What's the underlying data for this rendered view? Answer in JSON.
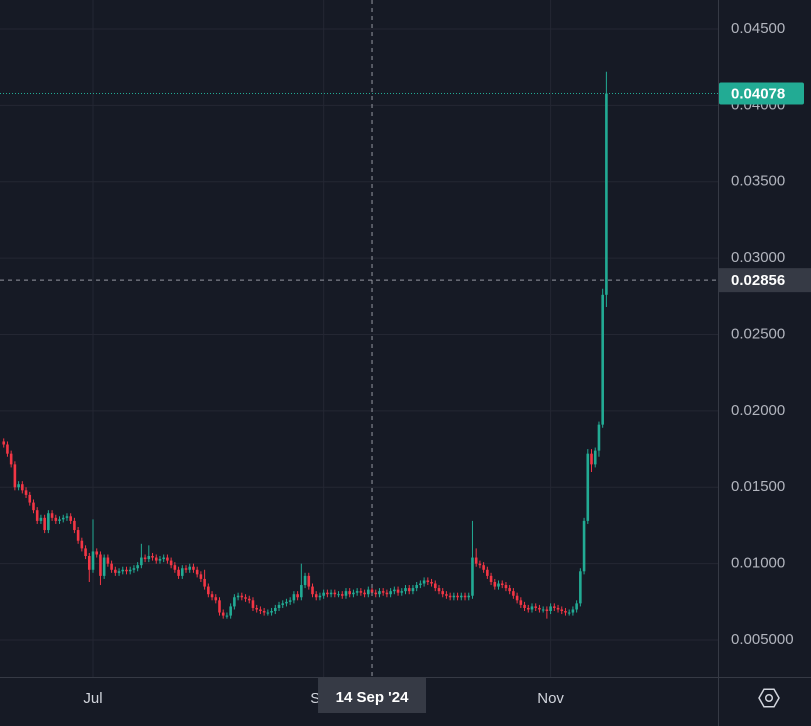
{
  "chart_data": {
    "type": "candlestick",
    "x": [
      "2024-06-07",
      "2024-06-08",
      "2024-06-09",
      "2024-06-10",
      "2024-06-11",
      "2024-06-12",
      "2024-06-13",
      "2024-06-14",
      "2024-06-15",
      "2024-06-16",
      "2024-06-17",
      "2024-06-18",
      "2024-06-19",
      "2024-06-20",
      "2024-06-21",
      "2024-06-22",
      "2024-06-23",
      "2024-06-24",
      "2024-06-25",
      "2024-06-26",
      "2024-06-27",
      "2024-06-28",
      "2024-06-29",
      "2024-06-30",
      "2024-07-01",
      "2024-07-02",
      "2024-07-03",
      "2024-07-04",
      "2024-07-05",
      "2024-07-06",
      "2024-07-07",
      "2024-07-08",
      "2024-07-09",
      "2024-07-10",
      "2024-07-11",
      "2024-07-12",
      "2024-07-13",
      "2024-07-14",
      "2024-07-15",
      "2024-07-16",
      "2024-07-17",
      "2024-07-18",
      "2024-07-19",
      "2024-07-20",
      "2024-07-21",
      "2024-07-22",
      "2024-07-23",
      "2024-07-24",
      "2024-07-25",
      "2024-07-26",
      "2024-07-27",
      "2024-07-28",
      "2024-07-29",
      "2024-07-30",
      "2024-07-31",
      "2024-08-01",
      "2024-08-02",
      "2024-08-03",
      "2024-08-04",
      "2024-08-05",
      "2024-08-06",
      "2024-08-07",
      "2024-08-08",
      "2024-08-09",
      "2024-08-10",
      "2024-08-11",
      "2024-08-12",
      "2024-08-13",
      "2024-08-14",
      "2024-08-15",
      "2024-08-16",
      "2024-08-17",
      "2024-08-18",
      "2024-08-19",
      "2024-08-20",
      "2024-08-21",
      "2024-08-22",
      "2024-08-23",
      "2024-08-24",
      "2024-08-25",
      "2024-08-26",
      "2024-08-27",
      "2024-08-28",
      "2024-08-29",
      "2024-08-30",
      "2024-08-31",
      "2024-09-01",
      "2024-09-02",
      "2024-09-03",
      "2024-09-04",
      "2024-09-05",
      "2024-09-06",
      "2024-09-07",
      "2024-09-08",
      "2024-09-09",
      "2024-09-10",
      "2024-09-11",
      "2024-09-12",
      "2024-09-13",
      "2024-09-14",
      "2024-09-15",
      "2024-09-16",
      "2024-09-17",
      "2024-09-18",
      "2024-09-19",
      "2024-09-20",
      "2024-09-21",
      "2024-09-22",
      "2024-09-23",
      "2024-09-24",
      "2024-09-25",
      "2024-09-26",
      "2024-09-27",
      "2024-09-28",
      "2024-09-29",
      "2024-09-30",
      "2024-10-01",
      "2024-10-02",
      "2024-10-03",
      "2024-10-04",
      "2024-10-05",
      "2024-10-06",
      "2024-10-07",
      "2024-10-08",
      "2024-10-09",
      "2024-10-10",
      "2024-10-11",
      "2024-10-12",
      "2024-10-13",
      "2024-10-14",
      "2024-10-15",
      "2024-10-16",
      "2024-10-17",
      "2024-10-18",
      "2024-10-19",
      "2024-10-20",
      "2024-10-21",
      "2024-10-22",
      "2024-10-23",
      "2024-10-24",
      "2024-10-25",
      "2024-10-26",
      "2024-10-27",
      "2024-10-28",
      "2024-10-29",
      "2024-10-30",
      "2024-10-31",
      "2024-11-01",
      "2024-11-02",
      "2024-11-03",
      "2024-11-04",
      "2024-11-05",
      "2024-11-06",
      "2024-11-07",
      "2024-11-08",
      "2024-11-09",
      "2024-11-10",
      "2024-11-11",
      "2024-11-12",
      "2024-11-13",
      "2024-11-14",
      "2024-11-15",
      "2024-11-16"
    ],
    "series": [
      {
        "up_color": "#22ab94",
        "down_color": "#f23645",
        "open": [
          0.018,
          0.0178,
          0.0172,
          0.0165,
          0.015,
          0.0152,
          0.0148,
          0.0145,
          0.014,
          0.0135,
          0.0128,
          0.013,
          0.0122,
          0.0133,
          0.013,
          0.0128,
          0.0129,
          0.013,
          0.0131,
          0.0128,
          0.0122,
          0.0115,
          0.011,
          0.0105,
          0.0096,
          0.0108,
          0.0106,
          0.0092,
          0.0104,
          0.01,
          0.0096,
          0.0094,
          0.0095,
          0.0096,
          0.0095,
          0.0096,
          0.0097,
          0.0099,
          0.0104,
          0.0103,
          0.0105,
          0.0104,
          0.0102,
          0.0103,
          0.0104,
          0.0102,
          0.0099,
          0.0096,
          0.0092,
          0.0097,
          0.0096,
          0.0098,
          0.0096,
          0.0093,
          0.009,
          0.0085,
          0.008,
          0.0078,
          0.0076,
          0.0068,
          0.0066,
          0.0066,
          0.0072,
          0.0078,
          0.0079,
          0.0078,
          0.0077,
          0.0076,
          0.0071,
          0.007,
          0.0069,
          0.0068,
          0.0068,
          0.0069,
          0.0071,
          0.0073,
          0.0074,
          0.0075,
          0.0076,
          0.008,
          0.0078,
          0.0086,
          0.0092,
          0.0085,
          0.008,
          0.0078,
          0.0079,
          0.0081,
          0.008,
          0.0081,
          0.008,
          0.008,
          0.0079,
          0.0082,
          0.008,
          0.0081,
          0.0082,
          0.0081,
          0.008,
          0.0083,
          0.0081,
          0.008,
          0.0082,
          0.0081,
          0.008,
          0.0082,
          0.0083,
          0.0081,
          0.0082,
          0.0084,
          0.0082,
          0.0084,
          0.0086,
          0.0087,
          0.0089,
          0.0088,
          0.0087,
          0.0084,
          0.0082,
          0.008,
          0.0079,
          0.0078,
          0.0079,
          0.0078,
          0.0079,
          0.0078,
          0.0079,
          0.0104,
          0.01,
          0.0099,
          0.0096,
          0.0092,
          0.0088,
          0.0085,
          0.0087,
          0.0086,
          0.0084,
          0.0082,
          0.0079,
          0.0076,
          0.0073,
          0.0071,
          0.007,
          0.0072,
          0.0071,
          0.007,
          0.007,
          0.0069,
          0.0072,
          0.0071,
          0.007,
          0.0069,
          0.0068,
          0.0068,
          0.007,
          0.0074,
          0.0095,
          0.0128,
          0.0172,
          0.0165,
          0.0174,
          0.0191,
          0.0276
        ],
        "high": [
          0.0182,
          0.018,
          0.0174,
          0.0167,
          0.0154,
          0.0154,
          0.015,
          0.0147,
          0.0142,
          0.0137,
          0.0132,
          0.0132,
          0.0135,
          0.0135,
          0.0132,
          0.0131,
          0.0132,
          0.0133,
          0.0133,
          0.013,
          0.0124,
          0.0117,
          0.0112,
          0.0107,
          0.0129,
          0.011,
          0.0108,
          0.0106,
          0.0106,
          0.0102,
          0.0098,
          0.0097,
          0.0098,
          0.0098,
          0.0098,
          0.0099,
          0.0101,
          0.0113,
          0.0106,
          0.0112,
          0.0107,
          0.0106,
          0.0105,
          0.0106,
          0.0106,
          0.0104,
          0.0101,
          0.0098,
          0.0099,
          0.0099,
          0.01,
          0.01,
          0.0098,
          0.0095,
          0.0096,
          0.0087,
          0.0082,
          0.008,
          0.0078,
          0.007,
          0.0068,
          0.0074,
          0.008,
          0.0081,
          0.0081,
          0.008,
          0.0079,
          0.0078,
          0.0073,
          0.0072,
          0.0071,
          0.007,
          0.0071,
          0.0073,
          0.0075,
          0.0076,
          0.0077,
          0.0078,
          0.0082,
          0.0082,
          0.01,
          0.0094,
          0.0094,
          0.0087,
          0.0082,
          0.0081,
          0.0083,
          0.0083,
          0.0083,
          0.0083,
          0.0082,
          0.0082,
          0.0084,
          0.0084,
          0.0083,
          0.0084,
          0.0084,
          0.0083,
          0.0085,
          0.0085,
          0.0083,
          0.0084,
          0.0084,
          0.0083,
          0.0084,
          0.0085,
          0.0085,
          0.0084,
          0.0086,
          0.0086,
          0.0086,
          0.0088,
          0.0089,
          0.0091,
          0.0091,
          0.009,
          0.0089,
          0.0086,
          0.0084,
          0.0082,
          0.0081,
          0.0081,
          0.0081,
          0.0081,
          0.0081,
          0.0081,
          0.0128,
          0.011,
          0.0102,
          0.0101,
          0.0098,
          0.0094,
          0.009,
          0.0089,
          0.0089,
          0.0088,
          0.0086,
          0.0084,
          0.0081,
          0.0078,
          0.0075,
          0.0073,
          0.0074,
          0.0074,
          0.0073,
          0.0072,
          0.0072,
          0.0074,
          0.0074,
          0.0073,
          0.0072,
          0.0071,
          0.007,
          0.0072,
          0.0076,
          0.0097,
          0.013,
          0.0175,
          0.0175,
          0.0176,
          0.0193,
          0.028,
          0.0422
        ],
        "low": [
          0.0176,
          0.017,
          0.0163,
          0.0148,
          0.0148,
          0.0146,
          0.0143,
          0.0138,
          0.0133,
          0.0126,
          0.0126,
          0.012,
          0.012,
          0.0128,
          0.0126,
          0.0126,
          0.0127,
          0.0128,
          0.0126,
          0.012,
          0.0113,
          0.0108,
          0.0103,
          0.0088,
          0.0094,
          0.0104,
          0.0086,
          0.009,
          0.0098,
          0.0094,
          0.0092,
          0.0092,
          0.0093,
          0.0093,
          0.0093,
          0.0094,
          0.0095,
          0.0097,
          0.0101,
          0.0101,
          0.0102,
          0.01,
          0.01,
          0.0101,
          0.01,
          0.0097,
          0.0094,
          0.009,
          0.009,
          0.0094,
          0.0094,
          0.0094,
          0.0091,
          0.0088,
          0.0083,
          0.0078,
          0.0076,
          0.0074,
          0.0066,
          0.0064,
          0.0064,
          0.0064,
          0.007,
          0.0076,
          0.0076,
          0.0075,
          0.0074,
          0.0069,
          0.0068,
          0.0067,
          0.0066,
          0.0066,
          0.0066,
          0.0067,
          0.0069,
          0.0071,
          0.0072,
          0.0073,
          0.0074,
          0.0076,
          0.0076,
          0.0084,
          0.0083,
          0.0078,
          0.0076,
          0.0076,
          0.0077,
          0.0078,
          0.0078,
          0.0078,
          0.0078,
          0.0077,
          0.0077,
          0.0078,
          0.0078,
          0.0079,
          0.0079,
          0.0078,
          0.0078,
          0.0079,
          0.0078,
          0.0078,
          0.0079,
          0.0078,
          0.0078,
          0.008,
          0.0079,
          0.0079,
          0.008,
          0.008,
          0.008,
          0.0082,
          0.0084,
          0.0085,
          0.0086,
          0.0085,
          0.0082,
          0.008,
          0.0078,
          0.0077,
          0.0076,
          0.0076,
          0.0076,
          0.0076,
          0.0076,
          0.0076,
          0.0077,
          0.0098,
          0.0097,
          0.0094,
          0.009,
          0.0086,
          0.0083,
          0.0083,
          0.0084,
          0.0082,
          0.008,
          0.0077,
          0.0074,
          0.0071,
          0.0069,
          0.0068,
          0.0068,
          0.0069,
          0.0068,
          0.0068,
          0.0064,
          0.0067,
          0.0069,
          0.0068,
          0.0067,
          0.0066,
          0.0066,
          0.0066,
          0.0068,
          0.0072,
          0.0093,
          0.0126,
          0.016,
          0.0163,
          0.017,
          0.0189,
          0.0268
        ],
        "close": [
          0.0178,
          0.0172,
          0.0165,
          0.015,
          0.0152,
          0.0148,
          0.0145,
          0.014,
          0.0135,
          0.0128,
          0.013,
          0.0122,
          0.0133,
          0.013,
          0.0128,
          0.0129,
          0.013,
          0.0131,
          0.0128,
          0.0122,
          0.0115,
          0.011,
          0.0105,
          0.0096,
          0.0108,
          0.0106,
          0.0092,
          0.0104,
          0.01,
          0.0096,
          0.0094,
          0.0095,
          0.0096,
          0.0095,
          0.0096,
          0.0097,
          0.0099,
          0.0104,
          0.0103,
          0.0105,
          0.0104,
          0.0102,
          0.0103,
          0.0104,
          0.0102,
          0.0099,
          0.0096,
          0.0092,
          0.0097,
          0.0096,
          0.0098,
          0.0096,
          0.0093,
          0.009,
          0.0085,
          0.008,
          0.0078,
          0.0076,
          0.0068,
          0.0066,
          0.0066,
          0.0072,
          0.0078,
          0.0079,
          0.0078,
          0.0077,
          0.0076,
          0.0071,
          0.007,
          0.0069,
          0.0068,
          0.0068,
          0.0069,
          0.0071,
          0.0073,
          0.0074,
          0.0075,
          0.0076,
          0.008,
          0.0078,
          0.0086,
          0.0092,
          0.0085,
          0.008,
          0.0078,
          0.0079,
          0.0081,
          0.008,
          0.0081,
          0.008,
          0.008,
          0.0079,
          0.0082,
          0.008,
          0.0081,
          0.0082,
          0.0081,
          0.008,
          0.0083,
          0.0081,
          0.008,
          0.0082,
          0.0081,
          0.008,
          0.0082,
          0.0083,
          0.0081,
          0.0082,
          0.0084,
          0.0082,
          0.0084,
          0.0086,
          0.0087,
          0.0089,
          0.0088,
          0.0087,
          0.0084,
          0.0082,
          0.008,
          0.0079,
          0.0078,
          0.0079,
          0.0078,
          0.0079,
          0.0078,
          0.0079,
          0.0104,
          0.01,
          0.0099,
          0.0096,
          0.0092,
          0.0088,
          0.0085,
          0.0087,
          0.0086,
          0.0084,
          0.0082,
          0.0079,
          0.0076,
          0.0073,
          0.0071,
          0.007,
          0.0072,
          0.0071,
          0.007,
          0.007,
          0.0069,
          0.0072,
          0.0071,
          0.007,
          0.0069,
          0.0068,
          0.0068,
          0.007,
          0.0074,
          0.0095,
          0.0128,
          0.0172,
          0.0165,
          0.0174,
          0.0191,
          0.0276,
          0.04078
        ]
      }
    ],
    "xlim": [
      "2024-06-06",
      "2024-12-16"
    ],
    "xticks": [
      {
        "value": "2024-07-01",
        "label": "Jul"
      },
      {
        "value": "2024-09-01",
        "label": "Sep"
      },
      {
        "value": "2024-11-01",
        "label": "Nov"
      }
    ],
    "ylim": [
      0.00258,
      0.0469
    ],
    "yticks": [
      {
        "value": 0.005,
        "label": "0.005000"
      },
      {
        "value": 0.01,
        "label": "0.01000"
      },
      {
        "value": 0.015,
        "label": "0.01500"
      },
      {
        "value": 0.02,
        "label": "0.02000"
      },
      {
        "value": 0.025,
        "label": "0.02500"
      },
      {
        "value": 0.03,
        "label": "0.03000"
      },
      {
        "value": 0.035,
        "label": "0.03500"
      },
      {
        "value": 0.04,
        "label": "0.04000"
      },
      {
        "value": 0.045,
        "label": "0.04500"
      }
    ],
    "grid": true,
    "crosshair": {
      "x": {
        "value": "2024-09-14",
        "label": "14 Sep '24"
      },
      "y": 0.02856
    }
  }
}
